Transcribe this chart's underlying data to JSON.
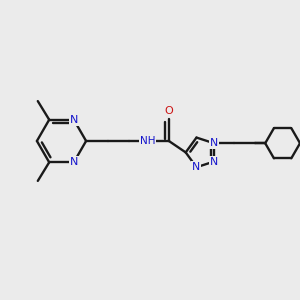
{
  "background_color": "#ebebeb",
  "bond_color": "#1a1a1a",
  "nitrogen_color": "#1414cc",
  "oxygen_color": "#cc1414",
  "line_width": 1.7,
  "fig_size": [
    3.0,
    3.0
  ],
  "dpi": 100,
  "xlim": [
    0,
    10
  ],
  "ylim": [
    0,
    10
  ]
}
